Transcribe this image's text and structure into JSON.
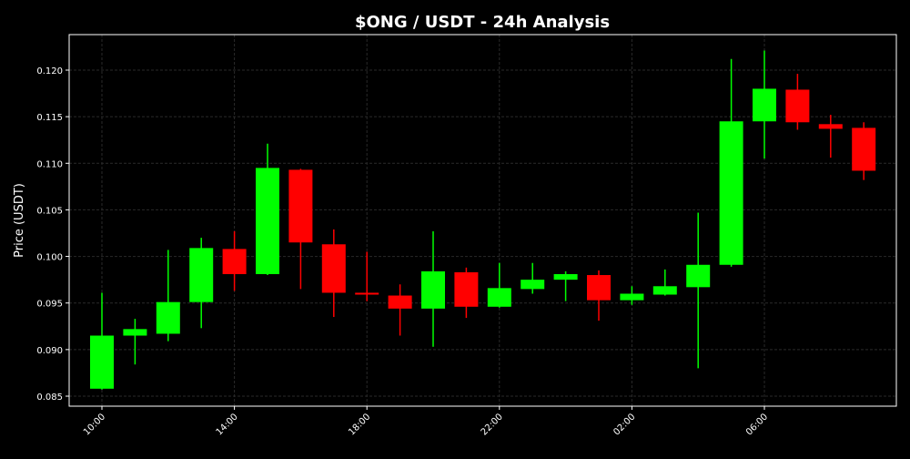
{
  "chart_data": {
    "type": "candlestick",
    "title": "$ONG / USDT - 24h Analysis",
    "xlabel": "",
    "ylabel": "Price (USDT)",
    "ylim": [
      0.084,
      0.124
    ],
    "yticks": [
      "0.085",
      "0.090",
      "0.095",
      "0.100",
      "0.105",
      "0.110",
      "0.115",
      "0.120"
    ],
    "xtick_labels": [
      "10:00",
      "14:00",
      "18:00",
      "22:00",
      "02:00",
      "06:00"
    ],
    "grid": true,
    "colors": {
      "background": "#000000",
      "up": "#00ff00",
      "down": "#ff0000",
      "text": "#ffffff",
      "grid": "#2a2a2a"
    },
    "candles": [
      {
        "time": "10:00",
        "open": 0.0858,
        "high": 0.0961,
        "low": 0.0857,
        "close": 0.0915
      },
      {
        "time": "11:00",
        "open": 0.0915,
        "high": 0.0933,
        "low": 0.0884,
        "close": 0.0922
      },
      {
        "time": "12:00",
        "open": 0.0917,
        "high": 0.1007,
        "low": 0.0909,
        "close": 0.0951
      },
      {
        "time": "13:00",
        "open": 0.0951,
        "high": 0.102,
        "low": 0.0923,
        "close": 0.1009
      },
      {
        "time": "14:00",
        "open": 0.1008,
        "high": 0.1027,
        "low": 0.0963,
        "close": 0.0981
      },
      {
        "time": "15:00",
        "open": 0.0981,
        "high": 0.1121,
        "low": 0.098,
        "close": 0.1095
      },
      {
        "time": "16:00",
        "open": 0.1093,
        "high": 0.1094,
        "low": 0.0965,
        "close": 0.1015
      },
      {
        "time": "17:00",
        "open": 0.1013,
        "high": 0.1029,
        "low": 0.0935,
        "close": 0.0961
      },
      {
        "time": "18:00",
        "open": 0.0961,
        "high": 0.1005,
        "low": 0.0952,
        "close": 0.0959
      },
      {
        "time": "19:00",
        "open": 0.0958,
        "high": 0.097,
        "low": 0.0915,
        "close": 0.0944
      },
      {
        "time": "20:00",
        "open": 0.0944,
        "high": 0.1027,
        "low": 0.0903,
        "close": 0.0984
      },
      {
        "time": "21:00",
        "open": 0.0983,
        "high": 0.0988,
        "low": 0.0934,
        "close": 0.0946
      },
      {
        "time": "22:00",
        "open": 0.0946,
        "high": 0.0993,
        "low": 0.0945,
        "close": 0.0966
      },
      {
        "time": "23:00",
        "open": 0.0965,
        "high": 0.0993,
        "low": 0.096,
        "close": 0.0975
      },
      {
        "time": "00:00",
        "open": 0.0975,
        "high": 0.0984,
        "low": 0.0952,
        "close": 0.0981
      },
      {
        "time": "01:00",
        "open": 0.098,
        "high": 0.0985,
        "low": 0.0931,
        "close": 0.0953
      },
      {
        "time": "02:00",
        "open": 0.0953,
        "high": 0.0968,
        "low": 0.0948,
        "close": 0.096
      },
      {
        "time": "03:00",
        "open": 0.0959,
        "high": 0.0986,
        "low": 0.0958,
        "close": 0.0968
      },
      {
        "time": "04:00",
        "open": 0.0967,
        "high": 0.1047,
        "low": 0.088,
        "close": 0.0991
      },
      {
        "time": "05:00",
        "open": 0.0991,
        "high": 0.1212,
        "low": 0.0989,
        "close": 0.1145
      },
      {
        "time": "06:00",
        "open": 0.1145,
        "high": 0.1221,
        "low": 0.1105,
        "close": 0.118
      },
      {
        "time": "07:00",
        "open": 0.1179,
        "high": 0.1196,
        "low": 0.1136,
        "close": 0.1144
      },
      {
        "time": "08:00",
        "open": 0.1142,
        "high": 0.1152,
        "low": 0.1106,
        "close": 0.1137
      },
      {
        "time": "09:00",
        "open": 0.1138,
        "high": 0.1144,
        "low": 0.1082,
        "close": 0.1092
      }
    ]
  }
}
